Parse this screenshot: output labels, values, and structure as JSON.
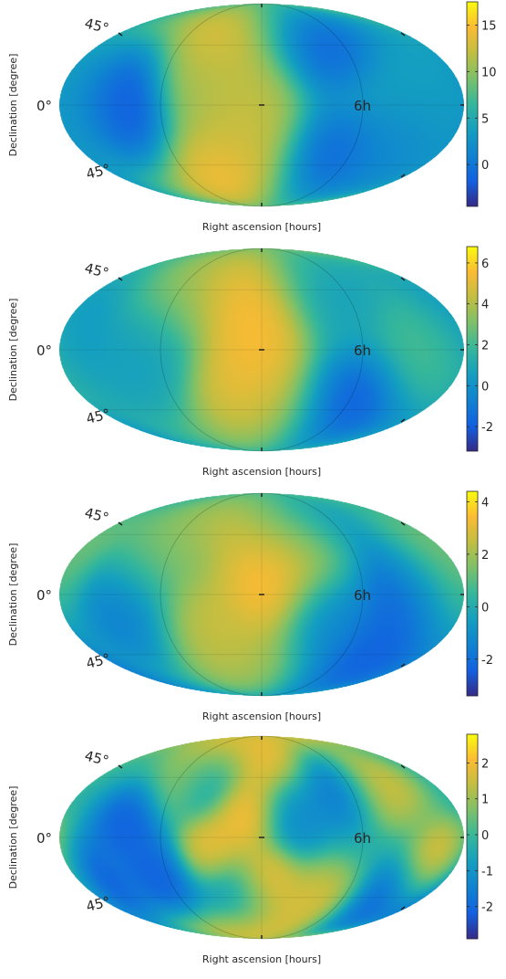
{
  "chart_data": [
    {
      "type": "heatmap",
      "projection": "mollweide",
      "xlabel": "Right ascension [hours]",
      "ylabel": "Declination [degree]",
      "sky_labels": {
        "north": "45°",
        "equator": "0°",
        "south": "45°",
        "ra": "6h"
      },
      "colorbar": {
        "ticks": [
          0,
          5,
          10,
          15
        ],
        "tick_labels": [
          "0",
          "5",
          "10",
          "15"
        ],
        "range": [
          -4.5,
          17.5
        ],
        "colormap": "parula"
      },
      "features": [
        {
          "ra_h": -2.5,
          "dec": 62,
          "value": 16
        },
        {
          "ra_h": -3.2,
          "dec": 20,
          "value": 12
        },
        {
          "ra_h": -0.7,
          "dec": 5,
          "value": 13
        },
        {
          "ra_h": -1.2,
          "dec": -30,
          "value": 13
        },
        {
          "ra_h": -2.5,
          "dec": -58,
          "value": 17
        },
        {
          "ra_h": -8.5,
          "dec": 0,
          "value": -4
        },
        {
          "ra_h": 3.8,
          "dec": 55,
          "value": -3
        },
        {
          "ra_h": 4.5,
          "dec": -48,
          "value": -2.5
        },
        {
          "ra_h": 9.0,
          "dec": -35,
          "value": 1
        },
        {
          "ra_h": 10.0,
          "dec": 5,
          "value": 3.5
        },
        {
          "ra_h": -11.0,
          "dec": 0,
          "value": 3
        }
      ]
    },
    {
      "type": "heatmap",
      "projection": "mollweide",
      "xlabel": "Right ascension [hours]",
      "ylabel": "Declination [degree]",
      "sky_labels": {
        "north": "45°",
        "equator": "0°",
        "south": "45°",
        "ra": "6h"
      },
      "colorbar": {
        "ticks": [
          -2,
          0,
          2,
          4,
          6
        ],
        "tick_labels": [
          "-2",
          "0",
          "2",
          "4",
          "6"
        ],
        "range": [
          -3.2,
          6.8
        ],
        "colormap": "parula"
      },
      "features": [
        {
          "ra_h": -1.6,
          "dec": 55,
          "value": 6.5
        },
        {
          "ra_h": -0.3,
          "dec": 12,
          "value": 6.3
        },
        {
          "ra_h": -1.0,
          "dec": -32,
          "value": 6
        },
        {
          "ra_h": 0.5,
          "dec": -60,
          "value": 4
        },
        {
          "ra_h": -5.5,
          "dec": 50,
          "value": 3.5
        },
        {
          "ra_h": -7.5,
          "dec": 0,
          "value": 0.5
        },
        {
          "ra_h": -11.5,
          "dec": 20,
          "value": 0
        },
        {
          "ra_h": 4.5,
          "dec": 55,
          "value": 0.5
        },
        {
          "ra_h": 6.0,
          "dec": -50,
          "value": -3
        },
        {
          "ra_h": 10.0,
          "dec": 0,
          "value": 2.5
        }
      ]
    },
    {
      "type": "heatmap",
      "projection": "mollweide",
      "xlabel": "Right ascension [hours]",
      "ylabel": "Declination [degree]",
      "sky_labels": {
        "north": "45°",
        "equator": "0°",
        "south": "45°",
        "ra": "6h"
      },
      "colorbar": {
        "ticks": [
          -2,
          0,
          2,
          4
        ],
        "tick_labels": [
          "-2",
          "0",
          "2",
          "4"
        ],
        "range": [
          -3.4,
          4.4
        ],
        "colormap": "parula"
      },
      "features": [
        {
          "ra_h": 0.2,
          "dec": 5,
          "value": 4.3
        },
        {
          "ra_h": -1.2,
          "dec": 60,
          "value": 3.5
        },
        {
          "ra_h": 2.5,
          "dec": 35,
          "value": 3.8
        },
        {
          "ra_h": -3.5,
          "dec": -25,
          "value": 3
        },
        {
          "ra_h": -0.5,
          "dec": -55,
          "value": 2.5
        },
        {
          "ra_h": -6.5,
          "dec": 30,
          "value": 2
        },
        {
          "ra_h": -8.0,
          "dec": -10,
          "value": -2
        },
        {
          "ra_h": 3.5,
          "dec": 60,
          "value": -2
        },
        {
          "ra_h": 8.5,
          "dec": 5,
          "value": -3
        },
        {
          "ra_h": 7.5,
          "dec": -55,
          "value": -3
        },
        {
          "ra_h": 4.0,
          "dec": -20,
          "value": -1.5
        },
        {
          "ra_h": 10.5,
          "dec": 25,
          "value": 2
        }
      ]
    },
    {
      "type": "heatmap",
      "projection": "mollweide",
      "xlabel": "Right ascension [hours]",
      "ylabel": "Declination [degree]",
      "sky_labels": {
        "north": "45°",
        "equator": "0°",
        "south": "45°",
        "ra": "6h"
      },
      "colorbar": {
        "ticks": [
          -2,
          -1,
          0,
          1,
          2
        ],
        "tick_labels": [
          "-2",
          "-1",
          "0",
          "1",
          "2"
        ],
        "range": [
          -2.9,
          2.8
        ],
        "colormap": "parula"
      },
      "features": [
        {
          "ra_h": -2.0,
          "dec": 70,
          "value": 2.6
        },
        {
          "ra_h": -5.0,
          "dec": 45,
          "value": 2.5
        },
        {
          "ra_h": 0.5,
          "dec": 55,
          "value": 2.2
        },
        {
          "ra_h": -1.0,
          "dec": 20,
          "value": 2.6
        },
        {
          "ra_h": -3.0,
          "dec": -10,
          "value": 2.4
        },
        {
          "ra_h": 0.0,
          "dec": -35,
          "value": 2.6
        },
        {
          "ra_h": -1.5,
          "dec": -70,
          "value": 2.5
        },
        {
          "ra_h": 11.0,
          "dec": -20,
          "value": 2.5
        },
        {
          "ra_h": 8.0,
          "dec": 40,
          "value": 2
        },
        {
          "ra_h": 4.0,
          "dec": -50,
          "value": 2
        },
        {
          "ra_h": -8.0,
          "dec": 10,
          "value": -2.5
        },
        {
          "ra_h": -4.0,
          "dec": 45,
          "value": -2.5
        },
        {
          "ra_h": -6.5,
          "dec": -30,
          "value": -2.5
        },
        {
          "ra_h": -11.0,
          "dec": -30,
          "value": -2.8
        },
        {
          "ra_h": 2.0,
          "dec": 20,
          "value": -1.5
        },
        {
          "ra_h": 5.0,
          "dec": 40,
          "value": -2
        },
        {
          "ra_h": 9.0,
          "dec": -50,
          "value": -2.5
        },
        {
          "ra_h": -2.0,
          "dec": -45,
          "value": -2.2
        }
      ]
    }
  ]
}
